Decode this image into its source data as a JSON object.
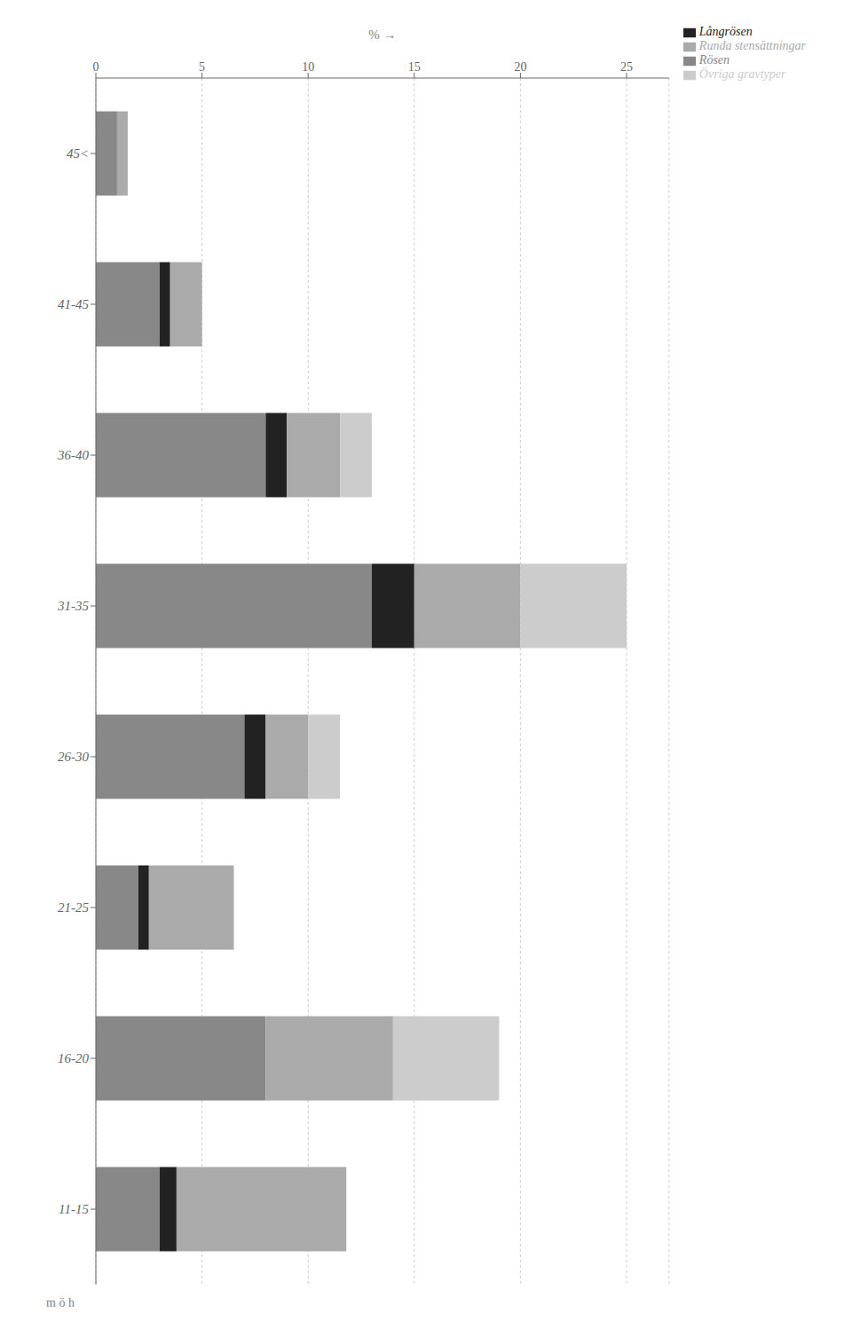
{
  "chart_data": {
    "type": "bar",
    "orientation": "horizontal",
    "stacked": true,
    "categories": [
      "45<",
      "41-45",
      "36-40",
      "31-35",
      "26-30",
      "21-25",
      "16-20",
      "11-15"
    ],
    "series": [
      {
        "name": "Rösen",
        "color": "#888888",
        "values": [
          1.0,
          3.0,
          8.0,
          13.0,
          7.0,
          2.0,
          8.0,
          3.0
        ]
      },
      {
        "name": "Långrösen",
        "color": "#222222",
        "values": [
          0.0,
          0.5,
          1.0,
          2.0,
          1.0,
          0.5,
          0.0,
          0.8
        ]
      },
      {
        "name": "Runda stensättningar",
        "color": "#aaaaaa",
        "values": [
          0.5,
          1.5,
          2.5,
          5.0,
          2.0,
          4.0,
          6.0,
          8.0
        ]
      },
      {
        "name": "Övriga gravtyper",
        "color": "#cccccc",
        "values": [
          0.0,
          0.0,
          1.5,
          5.0,
          1.5,
          0.0,
          5.0,
          0.0
        ]
      }
    ],
    "xlabel": "%  →",
    "ylabel": "m ö h",
    "xlim": [
      0,
      27
    ],
    "xticks": [
      0,
      5,
      10,
      15,
      20,
      25
    ],
    "grid": true,
    "legend": "upper right"
  }
}
